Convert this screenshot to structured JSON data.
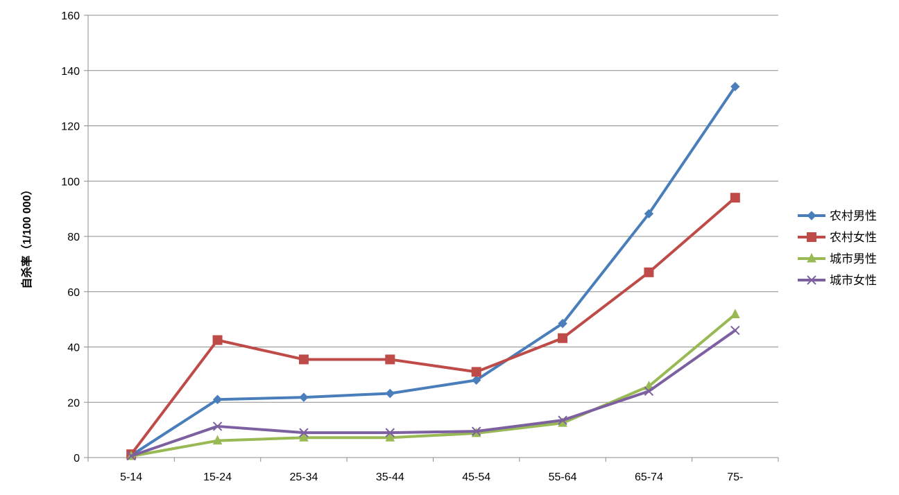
{
  "chart_data": {
    "type": "line",
    "title": "",
    "xlabel": "",
    "ylabel": "自杀率（1/100 000）",
    "categories": [
      "5-14",
      "15-24",
      "25-34",
      "35-44",
      "45-54",
      "55-64",
      "65-74",
      "75-"
    ],
    "ylim": [
      0,
      160
    ],
    "yticks": [
      0,
      20,
      40,
      60,
      80,
      100,
      120,
      140,
      160
    ],
    "grid": true,
    "legend_position": "right",
    "series": [
      {
        "name": "农村男性",
        "color": "#4a7ebb",
        "marker": "diamond",
        "values": [
          0.8,
          21.0,
          21.8,
          23.2,
          28.0,
          48.5,
          88.2,
          134.2
        ]
      },
      {
        "name": "农村女性",
        "color": "#be4b48",
        "marker": "square",
        "values": [
          1.2,
          42.5,
          35.5,
          35.5,
          31.0,
          43.2,
          67.0,
          94.0
        ]
      },
      {
        "name": "城市男性",
        "color": "#98b954",
        "marker": "triangle",
        "values": [
          0.5,
          6.1,
          7.2,
          7.2,
          8.8,
          12.5,
          25.8,
          51.8
        ]
      },
      {
        "name": "城市女性",
        "color": "#7d60a0",
        "marker": "x",
        "values": [
          0.6,
          11.3,
          9.0,
          9.0,
          9.5,
          13.5,
          24.0,
          46.0
        ]
      }
    ]
  }
}
